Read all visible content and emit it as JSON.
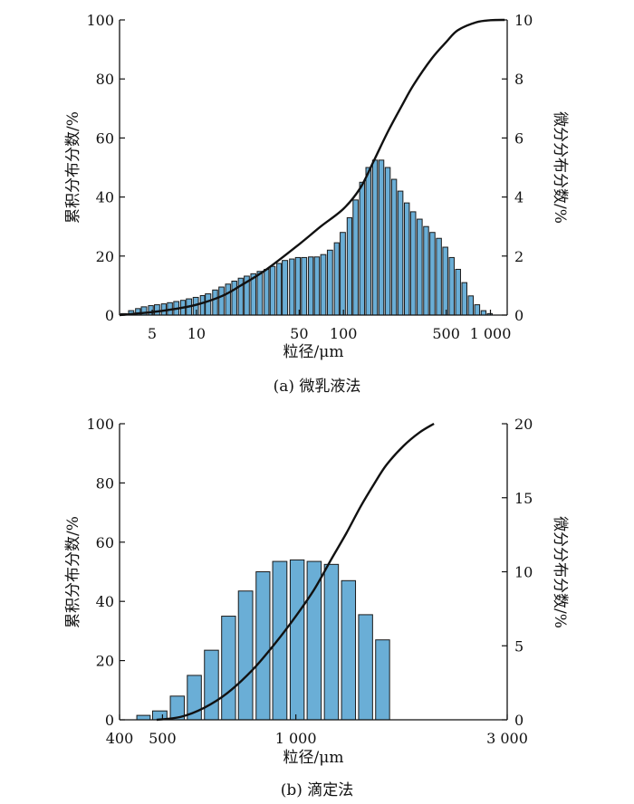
{
  "chart_data": [
    {
      "type": "bar",
      "caption": "(a) 微乳液法",
      "xlabel": "粒径/μm",
      "ylabel_left": "累积分布分数/%",
      "ylabel_right": "微分分布分数/%",
      "xscale": "log",
      "xlim": [
        3,
        1300
      ],
      "ylim_left": [
        0,
        100
      ],
      "ylim_right": [
        0,
        10
      ],
      "yticks_left": [
        "0",
        "20",
        "40",
        "60",
        "80",
        "100"
      ],
      "yticks_right": [
        "0",
        "2",
        "4",
        "6",
        "8",
        "10"
      ],
      "xticks": [
        {
          "value": 5,
          "label": "5"
        },
        {
          "value": 10,
          "label": "10"
        },
        {
          "value": 50,
          "label": "50"
        },
        {
          "value": 100,
          "label": "100"
        },
        {
          "value": 500,
          "label": "500"
        },
        {
          "value": 1000,
          "label": "1 000"
        }
      ],
      "bar_axis": "right",
      "bar_color": "#6aaed6",
      "bars": [
        {
          "x": 3.2,
          "value": 0.05
        },
        {
          "x": 3.6,
          "value": 0.15
        },
        {
          "x": 4.0,
          "value": 0.22
        },
        {
          "x": 4.4,
          "value": 0.28
        },
        {
          "x": 4.9,
          "value": 0.32
        },
        {
          "x": 5.4,
          "value": 0.35
        },
        {
          "x": 6.0,
          "value": 0.38
        },
        {
          "x": 6.6,
          "value": 0.42
        },
        {
          "x": 7.3,
          "value": 0.46
        },
        {
          "x": 8.1,
          "value": 0.5
        },
        {
          "x": 8.9,
          "value": 0.55
        },
        {
          "x": 9.9,
          "value": 0.6
        },
        {
          "x": 11,
          "value": 0.66
        },
        {
          "x": 12,
          "value": 0.72
        },
        {
          "x": 13.4,
          "value": 0.85
        },
        {
          "x": 14.8,
          "value": 0.95
        },
        {
          "x": 16.4,
          "value": 1.05
        },
        {
          "x": 18.1,
          "value": 1.15
        },
        {
          "x": 20,
          "value": 1.25
        },
        {
          "x": 22,
          "value": 1.32
        },
        {
          "x": 24.4,
          "value": 1.4
        },
        {
          "x": 27,
          "value": 1.48
        },
        {
          "x": 30,
          "value": 1.55
        },
        {
          "x": 33,
          "value": 1.65
        },
        {
          "x": 36.5,
          "value": 1.75
        },
        {
          "x": 40,
          "value": 1.85
        },
        {
          "x": 44.6,
          "value": 1.9
        },
        {
          "x": 49,
          "value": 1.95
        },
        {
          "x": 54,
          "value": 1.95
        },
        {
          "x": 60,
          "value": 1.97
        },
        {
          "x": 66,
          "value": 1.97
        },
        {
          "x": 73,
          "value": 2.05
        },
        {
          "x": 81,
          "value": 2.2
        },
        {
          "x": 90,
          "value": 2.45
        },
        {
          "x": 99,
          "value": 2.8
        },
        {
          "x": 110,
          "value": 3.3
        },
        {
          "x": 121,
          "value": 3.9
        },
        {
          "x": 134,
          "value": 4.5
        },
        {
          "x": 148,
          "value": 5.0
        },
        {
          "x": 164,
          "value": 5.25
        },
        {
          "x": 181,
          "value": 5.25
        },
        {
          "x": 200,
          "value": 5.0
        },
        {
          "x": 221,
          "value": 4.6
        },
        {
          "x": 244,
          "value": 4.2
        },
        {
          "x": 270,
          "value": 3.8
        },
        {
          "x": 298,
          "value": 3.5
        },
        {
          "x": 330,
          "value": 3.25
        },
        {
          "x": 365,
          "value": 3.0
        },
        {
          "x": 403,
          "value": 2.8
        },
        {
          "x": 446,
          "value": 2.6
        },
        {
          "x": 493,
          "value": 2.3
        },
        {
          "x": 545,
          "value": 1.95
        },
        {
          "x": 602,
          "value": 1.55
        },
        {
          "x": 665,
          "value": 1.1
        },
        {
          "x": 735,
          "value": 0.65
        },
        {
          "x": 812,
          "value": 0.35
        },
        {
          "x": 898,
          "value": 0.15
        },
        {
          "x": 990,
          "value": 0.05
        }
      ],
      "cumulative": [
        {
          "x": 3,
          "y": 0.0
        },
        {
          "x": 5,
          "y": 1.0
        },
        {
          "x": 7,
          "y": 2.0
        },
        {
          "x": 10,
          "y": 3.5
        },
        {
          "x": 15,
          "y": 6.5
        },
        {
          "x": 20,
          "y": 10.0
        },
        {
          "x": 30,
          "y": 15.5
        },
        {
          "x": 50,
          "y": 24.0
        },
        {
          "x": 70,
          "y": 30.0
        },
        {
          "x": 100,
          "y": 36.0
        },
        {
          "x": 130,
          "y": 43.0
        },
        {
          "x": 160,
          "y": 52.0
        },
        {
          "x": 200,
          "y": 62.0
        },
        {
          "x": 250,
          "y": 71.0
        },
        {
          "x": 300,
          "y": 78.0
        },
        {
          "x": 400,
          "y": 87.0
        },
        {
          "x": 500,
          "y": 92.5
        },
        {
          "x": 600,
          "y": 96.5
        },
        {
          "x": 800,
          "y": 99.2
        },
        {
          "x": 1000,
          "y": 99.9
        },
        {
          "x": 1250,
          "y": 100.0
        }
      ]
    },
    {
      "type": "bar",
      "caption": "(b) 滴定法",
      "xlabel": "粒径/μm",
      "ylabel_left": "累积分布分数/%",
      "ylabel_right": "微分分布分数/%",
      "xscale": "log",
      "xlim": [
        400,
        3000
      ],
      "ylim_left": [
        0,
        100
      ],
      "ylim_right": [
        0,
        20
      ],
      "yticks_left": [
        "0",
        "20",
        "40",
        "60",
        "80",
        "100"
      ],
      "yticks_right": [
        "0",
        "5",
        "10",
        "15",
        "20"
      ],
      "xticks": [
        {
          "value": 400,
          "label": "400"
        },
        {
          "value": 500,
          "label": "500"
        },
        {
          "value": 1000,
          "label": "1 000"
        },
        {
          "value": 3000,
          "label": "3 000"
        }
      ],
      "bar_axis": "right",
      "bar_color": "#6aaed6",
      "bars": [
        {
          "x": 453,
          "value": 0.3
        },
        {
          "x": 493,
          "value": 0.6
        },
        {
          "x": 540,
          "value": 1.6
        },
        {
          "x": 590,
          "value": 3.0
        },
        {
          "x": 645,
          "value": 4.7
        },
        {
          "x": 705,
          "value": 7.0
        },
        {
          "x": 770,
          "value": 8.7
        },
        {
          "x": 843,
          "value": 10.0
        },
        {
          "x": 920,
          "value": 10.7
        },
        {
          "x": 1007,
          "value": 10.8
        },
        {
          "x": 1100,
          "value": 10.7
        },
        {
          "x": 1203,
          "value": 10.5
        },
        {
          "x": 1315,
          "value": 9.4
        },
        {
          "x": 1437,
          "value": 7.1
        },
        {
          "x": 1570,
          "value": 5.4
        }
      ],
      "cumulative": [
        {
          "x": 485,
          "y": 0.0
        },
        {
          "x": 550,
          "y": 1.0
        },
        {
          "x": 620,
          "y": 4.0
        },
        {
          "x": 700,
          "y": 9.0
        },
        {
          "x": 800,
          "y": 17.0
        },
        {
          "x": 900,
          "y": 26.0
        },
        {
          "x": 1000,
          "y": 35.0
        },
        {
          "x": 1100,
          "y": 44.0
        },
        {
          "x": 1200,
          "y": 54.0
        },
        {
          "x": 1300,
          "y": 63.0
        },
        {
          "x": 1400,
          "y": 72.0
        },
        {
          "x": 1500,
          "y": 79.5
        },
        {
          "x": 1600,
          "y": 86.0
        },
        {
          "x": 1750,
          "y": 92.5
        },
        {
          "x": 1900,
          "y": 97.0
        },
        {
          "x": 2050,
          "y": 100.0
        }
      ]
    }
  ]
}
